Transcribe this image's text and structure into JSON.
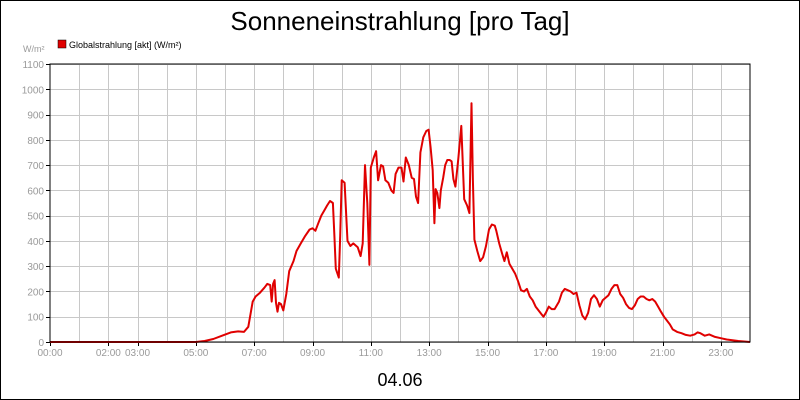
{
  "chart_data": {
    "type": "line",
    "title": "Sonneneinstrahlung [pro Tag]",
    "ylabel": "W/m²",
    "xlabel": "04.06",
    "ylim": [
      0,
      1100
    ],
    "xlim": [
      0,
      24
    ],
    "grid": true,
    "legend_position": "top-left",
    "y_ticks": [
      0,
      100,
      200,
      300,
      400,
      500,
      600,
      700,
      800,
      900,
      1000,
      1100
    ],
    "x_ticks": [
      {
        "x": 0,
        "label": "00:00"
      },
      {
        "x": 2,
        "label": "02:00"
      },
      {
        "x": 3,
        "label": "03:00"
      },
      {
        "x": 5,
        "label": "05:00"
      },
      {
        "x": 7,
        "label": "07:00"
      },
      {
        "x": 9,
        "label": "09:00"
      },
      {
        "x": 11,
        "label": "11:00"
      },
      {
        "x": 13,
        "label": "13:00"
      },
      {
        "x": 15,
        "label": "15:00"
      },
      {
        "x": 17,
        "label": "17:00"
      },
      {
        "x": 19,
        "label": "19:00"
      },
      {
        "x": 21,
        "label": "21:00"
      },
      {
        "x": 23,
        "label": "23:00"
      }
    ],
    "series": [
      {
        "name": "Globalstrahlung [akt] (W/m²)",
        "color": "#e00000",
        "points": [
          [
            0,
            0
          ],
          [
            5,
            0
          ],
          [
            5.3,
            4
          ],
          [
            5.6,
            12
          ],
          [
            5.9,
            25
          ],
          [
            6.2,
            38
          ],
          [
            6.45,
            42
          ],
          [
            6.65,
            40
          ],
          [
            6.8,
            60
          ],
          [
            6.95,
            160
          ],
          [
            7.05,
            180
          ],
          [
            7.2,
            195
          ],
          [
            7.35,
            215
          ],
          [
            7.45,
            230
          ],
          [
            7.55,
            225
          ],
          [
            7.6,
            160
          ],
          [
            7.65,
            230
          ],
          [
            7.7,
            245
          ],
          [
            7.75,
            155
          ],
          [
            7.8,
            120
          ],
          [
            7.85,
            155
          ],
          [
            7.92,
            150
          ],
          [
            8.0,
            125
          ],
          [
            8.1,
            190
          ],
          [
            8.2,
            280
          ],
          [
            8.35,
            320
          ],
          [
            8.45,
            360
          ],
          [
            8.6,
            390
          ],
          [
            8.75,
            420
          ],
          [
            8.9,
            445
          ],
          [
            9.0,
            450
          ],
          [
            9.1,
            440
          ],
          [
            9.2,
            470
          ],
          [
            9.3,
            500
          ],
          [
            9.4,
            520
          ],
          [
            9.5,
            540
          ],
          [
            9.6,
            558
          ],
          [
            9.7,
            550
          ],
          [
            9.75,
            420
          ],
          [
            9.8,
            290
          ],
          [
            9.9,
            255
          ],
          [
            9.95,
            420
          ],
          [
            10.0,
            640
          ],
          [
            10.1,
            630
          ],
          [
            10.2,
            400
          ],
          [
            10.3,
            380
          ],
          [
            10.4,
            390
          ],
          [
            10.55,
            375
          ],
          [
            10.65,
            340
          ],
          [
            10.72,
            390
          ],
          [
            10.8,
            700
          ],
          [
            10.88,
            550
          ],
          [
            10.95,
            305
          ],
          [
            11.0,
            690
          ],
          [
            11.1,
            730
          ],
          [
            11.18,
            755
          ],
          [
            11.25,
            640
          ],
          [
            11.35,
            700
          ],
          [
            11.42,
            695
          ],
          [
            11.5,
            640
          ],
          [
            11.6,
            630
          ],
          [
            11.7,
            600
          ],
          [
            11.78,
            590
          ],
          [
            11.85,
            665
          ],
          [
            11.95,
            690
          ],
          [
            12.05,
            690
          ],
          [
            12.12,
            635
          ],
          [
            12.2,
            730
          ],
          [
            12.3,
            700
          ],
          [
            12.4,
            650
          ],
          [
            12.48,
            645
          ],
          [
            12.55,
            575
          ],
          [
            12.62,
            550
          ],
          [
            12.7,
            750
          ],
          [
            12.8,
            810
          ],
          [
            12.9,
            835
          ],
          [
            12.98,
            840
          ],
          [
            13.05,
            770
          ],
          [
            13.12,
            680
          ],
          [
            13.18,
            470
          ],
          [
            13.22,
            605
          ],
          [
            13.28,
            590
          ],
          [
            13.35,
            530
          ],
          [
            13.4,
            600
          ],
          [
            13.48,
            650
          ],
          [
            13.55,
            700
          ],
          [
            13.62,
            720
          ],
          [
            13.7,
            720
          ],
          [
            13.77,
            715
          ],
          [
            13.83,
            645
          ],
          [
            13.9,
            615
          ],
          [
            14.0,
            725
          ],
          [
            14.1,
            855
          ],
          [
            14.2,
            565
          ],
          [
            14.3,
            540
          ],
          [
            14.38,
            510
          ],
          [
            14.45,
            945
          ],
          [
            14.5,
            640
          ],
          [
            14.55,
            405
          ],
          [
            14.65,
            360
          ],
          [
            14.75,
            320
          ],
          [
            14.85,
            335
          ],
          [
            14.95,
            380
          ],
          [
            15.05,
            445
          ],
          [
            15.15,
            465
          ],
          [
            15.25,
            460
          ],
          [
            15.3,
            440
          ],
          [
            15.4,
            390
          ],
          [
            15.5,
            350
          ],
          [
            15.58,
            320
          ],
          [
            15.66,
            355
          ],
          [
            15.75,
            310
          ],
          [
            15.85,
            290
          ],
          [
            15.95,
            270
          ],
          [
            16.05,
            240
          ],
          [
            16.15,
            205
          ],
          [
            16.25,
            200
          ],
          [
            16.35,
            210
          ],
          [
            16.45,
            180
          ],
          [
            16.55,
            165
          ],
          [
            16.65,
            140
          ],
          [
            16.75,
            125
          ],
          [
            16.85,
            110
          ],
          [
            16.92,
            100
          ],
          [
            17.0,
            115
          ],
          [
            17.1,
            140
          ],
          [
            17.2,
            130
          ],
          [
            17.3,
            130
          ],
          [
            17.45,
            160
          ],
          [
            17.55,
            195
          ],
          [
            17.65,
            210
          ],
          [
            17.75,
            205
          ],
          [
            17.85,
            200
          ],
          [
            17.95,
            190
          ],
          [
            18.05,
            195
          ],
          [
            18.15,
            145
          ],
          [
            18.25,
            105
          ],
          [
            18.35,
            90
          ],
          [
            18.45,
            115
          ],
          [
            18.55,
            170
          ],
          [
            18.65,
            185
          ],
          [
            18.75,
            170
          ],
          [
            18.85,
            140
          ],
          [
            18.95,
            165
          ],
          [
            19.05,
            175
          ],
          [
            19.15,
            185
          ],
          [
            19.25,
            210
          ],
          [
            19.35,
            225
          ],
          [
            19.45,
            225
          ],
          [
            19.55,
            190
          ],
          [
            19.65,
            175
          ],
          [
            19.75,
            150
          ],
          [
            19.85,
            135
          ],
          [
            19.95,
            130
          ],
          [
            20.05,
            145
          ],
          [
            20.15,
            170
          ],
          [
            20.25,
            180
          ],
          [
            20.35,
            180
          ],
          [
            20.45,
            170
          ],
          [
            20.55,
            165
          ],
          [
            20.65,
            170
          ],
          [
            20.75,
            160
          ],
          [
            20.85,
            140
          ],
          [
            20.95,
            120
          ],
          [
            21.05,
            100
          ],
          [
            21.15,
            85
          ],
          [
            21.25,
            70
          ],
          [
            21.35,
            50
          ],
          [
            21.5,
            40
          ],
          [
            21.65,
            35
          ],
          [
            21.8,
            28
          ],
          [
            21.95,
            25
          ],
          [
            22.1,
            30
          ],
          [
            22.2,
            38
          ],
          [
            22.3,
            35
          ],
          [
            22.45,
            25
          ],
          [
            22.6,
            30
          ],
          [
            22.8,
            20
          ],
          [
            23.0,
            15
          ],
          [
            23.2,
            10
          ],
          [
            23.4,
            7
          ],
          [
            23.6,
            4
          ],
          [
            23.8,
            2
          ],
          [
            24.0,
            0
          ]
        ]
      }
    ]
  }
}
